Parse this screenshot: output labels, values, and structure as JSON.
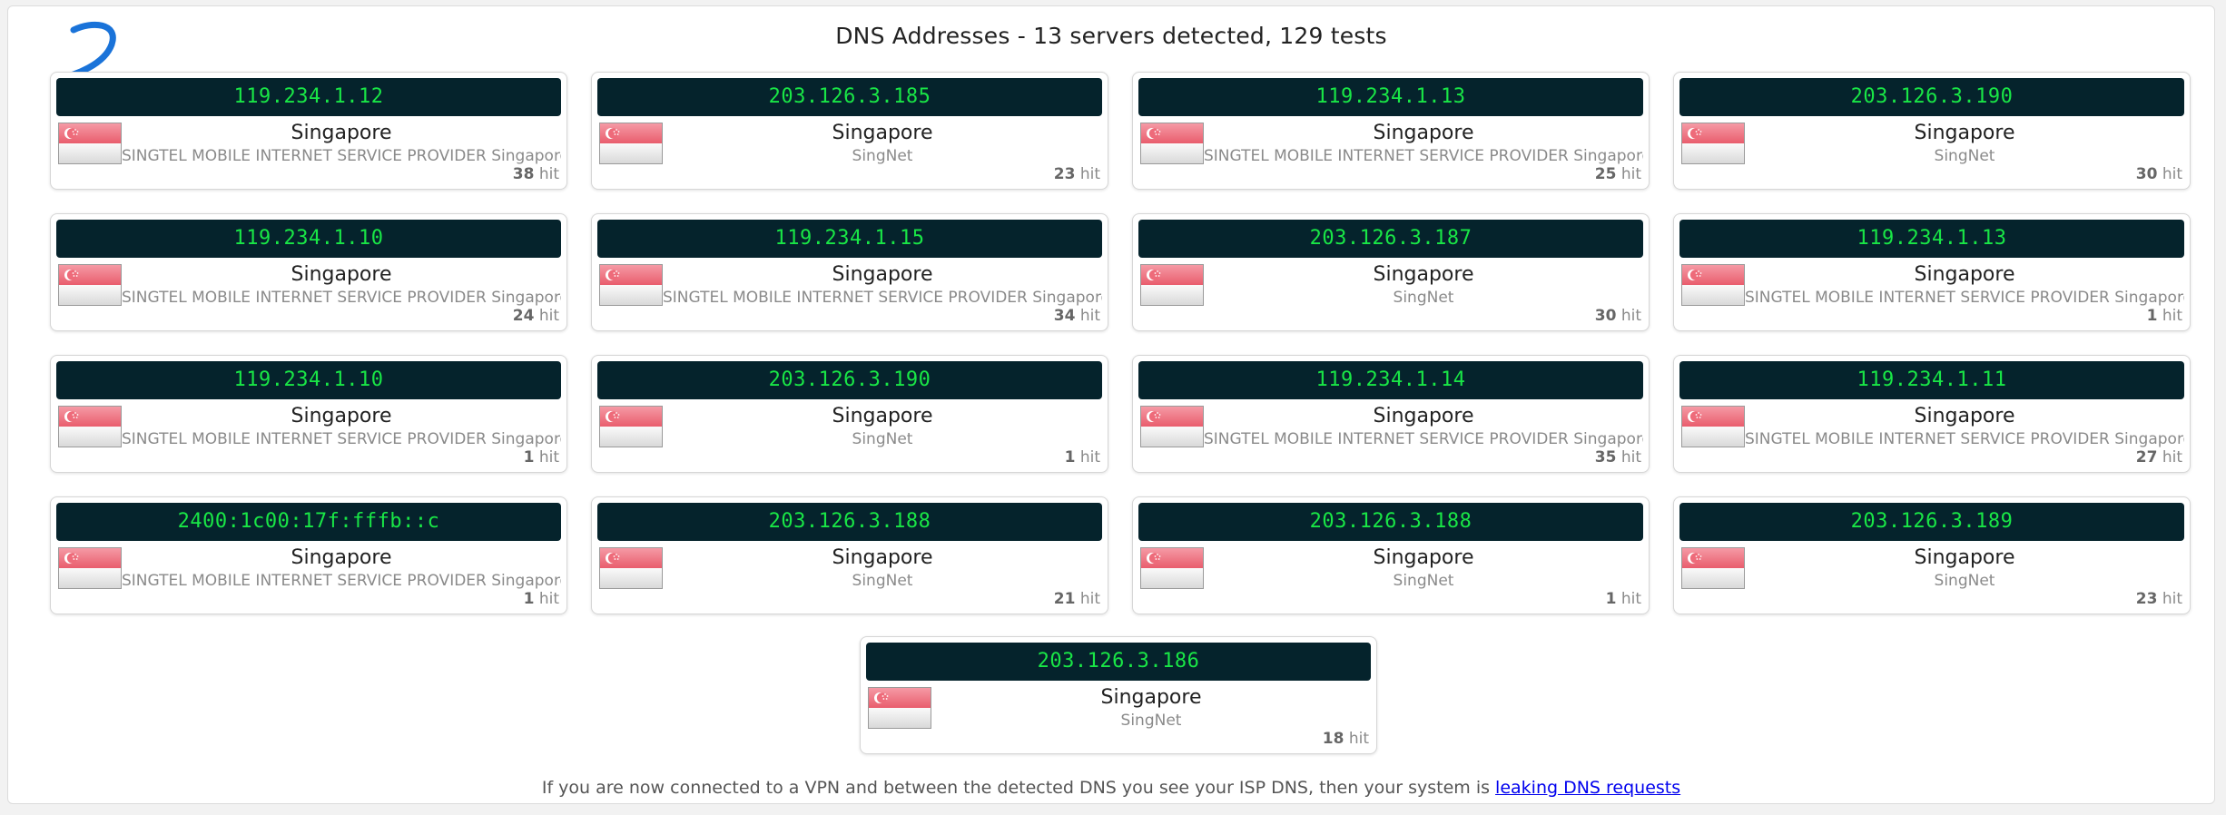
{
  "title": "DNS Addresses - 13 servers detected, 129 tests",
  "hit_unit": "hit",
  "footer": {
    "text": "If you are now connected to a VPN and between the detected DNS you see your ISP DNS, then your system is",
    "link": "leaking DNS requests"
  },
  "colors": {
    "ip_bar_bg": "#05232c",
    "ip_text": "#19e646",
    "link": "#0000ee",
    "annotation": "#1a73d9"
  },
  "servers": [
    {
      "ip": "119.234.1.12",
      "country": "Singapore",
      "isp": "SINGTEL MOBILE INTERNET SERVICE PROVIDER Singapore",
      "hits": "38",
      "flag": "singapore-flag"
    },
    {
      "ip": "203.126.3.185",
      "country": "Singapore",
      "isp": "SingNet",
      "hits": "23",
      "flag": "singapore-flag"
    },
    {
      "ip": "119.234.1.13",
      "country": "Singapore",
      "isp": "SINGTEL MOBILE INTERNET SERVICE PROVIDER Singapore",
      "hits": "25",
      "flag": "singapore-flag"
    },
    {
      "ip": "203.126.3.190",
      "country": "Singapore",
      "isp": "SingNet",
      "hits": "30",
      "flag": "singapore-flag"
    },
    {
      "ip": "119.234.1.10",
      "country": "Singapore",
      "isp": "SINGTEL MOBILE INTERNET SERVICE PROVIDER Singapore",
      "hits": "24",
      "flag": "singapore-flag"
    },
    {
      "ip": "119.234.1.15",
      "country": "Singapore",
      "isp": "SINGTEL MOBILE INTERNET SERVICE PROVIDER Singapore",
      "hits": "34",
      "flag": "singapore-flag"
    },
    {
      "ip": "203.126.3.187",
      "country": "Singapore",
      "isp": "SingNet",
      "hits": "30",
      "flag": "singapore-flag"
    },
    {
      "ip": "119.234.1.13",
      "country": "Singapore",
      "isp": "SINGTEL MOBILE INTERNET SERVICE PROVIDER Singapore",
      "hits": "1",
      "flag": "singapore-flag"
    },
    {
      "ip": "119.234.1.10",
      "country": "Singapore",
      "isp": "SINGTEL MOBILE INTERNET SERVICE PROVIDER Singapore",
      "hits": "1",
      "flag": "singapore-flag"
    },
    {
      "ip": "203.126.3.190",
      "country": "Singapore",
      "isp": "SingNet",
      "hits": "1",
      "flag": "singapore-flag"
    },
    {
      "ip": "119.234.1.14",
      "country": "Singapore",
      "isp": "SINGTEL MOBILE INTERNET SERVICE PROVIDER Singapore",
      "hits": "35",
      "flag": "singapore-flag"
    },
    {
      "ip": "119.234.1.11",
      "country": "Singapore",
      "isp": "SINGTEL MOBILE INTERNET SERVICE PROVIDER Singapore",
      "hits": "27",
      "flag": "singapore-flag"
    },
    {
      "ip": "2400:1c00:17f:fffb::c",
      "country": "Singapore",
      "isp": "SINGTEL MOBILE INTERNET SERVICE PROVIDER Singapore",
      "hits": "1",
      "flag": "singapore-flag"
    },
    {
      "ip": "203.126.3.188",
      "country": "Singapore",
      "isp": "SingNet",
      "hits": "21",
      "flag": "singapore-flag"
    },
    {
      "ip": "203.126.3.188",
      "country": "Singapore",
      "isp": "SingNet",
      "hits": "1",
      "flag": "singapore-flag"
    },
    {
      "ip": "203.126.3.189",
      "country": "Singapore",
      "isp": "SingNet",
      "hits": "23",
      "flag": "singapore-flag"
    },
    {
      "ip": "203.126.3.186",
      "country": "Singapore",
      "isp": "SingNet",
      "hits": "18",
      "flag": "singapore-flag"
    }
  ]
}
